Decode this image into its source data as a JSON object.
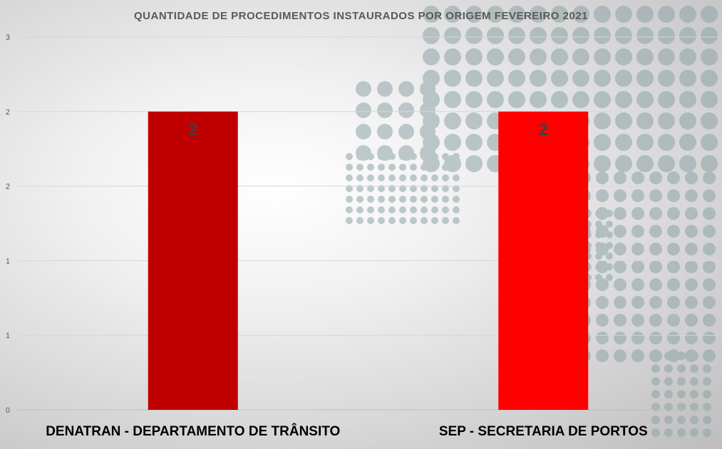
{
  "chart_data": {
    "type": "bar",
    "title": "QUANTIDADE  DE PROCEDIMENTOS  INSTAURADOS POR ORIGEM FEVEREIRO  2021",
    "categories": [
      "DENATRAN - DEPARTAMENTO DE TRÂNSITO",
      "SEP - SECRETARIA DE PORTOS"
    ],
    "values": [
      2,
      2
    ],
    "data_labels": [
      "2",
      "2"
    ],
    "bar_colors": [
      "#c00000",
      "#ff0000"
    ],
    "xlabel": "",
    "ylabel": "",
    "ylim": [
      0,
      2.5
    ],
    "y_ticks": [
      0,
      0.5,
      1,
      1.5,
      2,
      2.5
    ],
    "y_tick_labels": [
      "0",
      "1",
      "1",
      "2",
      "2",
      "3"
    ],
    "grid": true,
    "legend": "none"
  }
}
